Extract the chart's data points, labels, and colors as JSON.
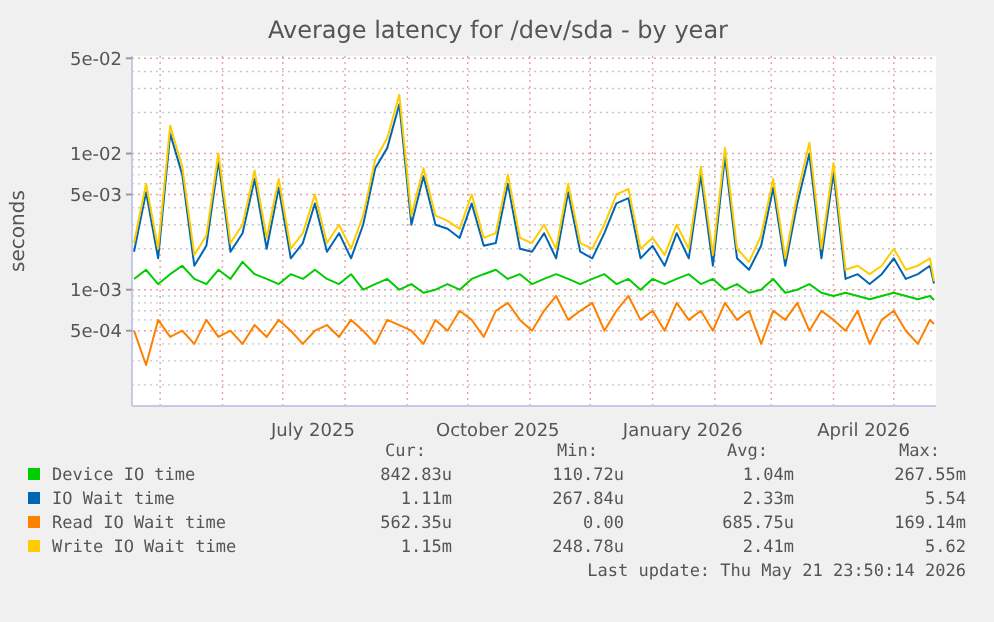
{
  "chart_data": {
    "type": "line",
    "title": "Average latency for /dev/sda - by year",
    "ylabel": "seconds",
    "log": "y",
    "grid": true,
    "legend": "bottom",
    "marker": "none",
    "line_style": "solid",
    "x": [
      "2025-04-18",
      "2025-04-24",
      "2025-04-30",
      "2025-05-06",
      "2025-05-12",
      "2025-05-18",
      "2025-05-24",
      "2025-05-30",
      "2025-06-05",
      "2025-06-11",
      "2025-06-17",
      "2025-06-23",
      "2025-06-29",
      "2025-07-05",
      "2025-07-11",
      "2025-07-17",
      "2025-07-23",
      "2025-07-29",
      "2025-08-04",
      "2025-08-10",
      "2025-08-16",
      "2025-08-22",
      "2025-08-28",
      "2025-09-03",
      "2025-09-09",
      "2025-09-15",
      "2025-09-21",
      "2025-09-27",
      "2025-10-03",
      "2025-10-09",
      "2025-10-15",
      "2025-10-21",
      "2025-10-27",
      "2025-11-02",
      "2025-11-08",
      "2025-11-14",
      "2025-11-20",
      "2025-11-26",
      "2025-12-02",
      "2025-12-08",
      "2025-12-14",
      "2025-12-20",
      "2025-12-26",
      "2026-01-01",
      "2026-01-07",
      "2026-01-13",
      "2026-01-19",
      "2026-01-25",
      "2026-01-31",
      "2026-02-06",
      "2026-02-12",
      "2026-02-18",
      "2026-02-24",
      "2026-03-02",
      "2026-03-08",
      "2026-03-14",
      "2026-03-20",
      "2026-03-26",
      "2026-04-01",
      "2026-04-07",
      "2026-04-13",
      "2026-04-19",
      "2026-04-25",
      "2026-05-01",
      "2026-05-07",
      "2026-05-13",
      "2026-05-19",
      "2026-05-21"
    ],
    "xlim": [
      "2025-04-17",
      "2026-05-22"
    ],
    "xticks": [
      {
        "value": "2025-05-01",
        "label": null
      },
      {
        "value": "2025-06-01",
        "label": null
      },
      {
        "value": "2025-07-01",
        "label": null
      },
      {
        "value": "2025-08-01",
        "label": null
      },
      {
        "value": "2025-09-01",
        "label": null
      },
      {
        "value": "2025-10-01",
        "label": null
      },
      {
        "value": "2025-11-01",
        "label": null
      },
      {
        "value": "2025-12-01",
        "label": null
      },
      {
        "value": "2026-01-01",
        "label": null
      },
      {
        "value": "2026-02-01",
        "label": null
      },
      {
        "value": "2026-03-01",
        "label": null
      },
      {
        "value": "2026-04-01",
        "label": null
      },
      {
        "value": "2026-05-01",
        "label": null
      },
      {
        "value": "2025-07-16",
        "label": "July 2025"
      },
      {
        "value": "2025-10-16",
        "label": "October 2025"
      },
      {
        "value": "2026-01-16",
        "label": "January 2026"
      },
      {
        "value": "2026-04-16",
        "label": "April 2026"
      }
    ],
    "ylim": [
      0.00014,
      0.052
    ],
    "yticks": [
      {
        "value": 0.0002,
        "label": null
      },
      {
        "value": 0.0003,
        "label": null
      },
      {
        "value": 0.0004,
        "label": null
      },
      {
        "value": 0.0005,
        "label": "5e-04"
      },
      {
        "value": 0.0006,
        "label": null
      },
      {
        "value": 0.0007,
        "label": null
      },
      {
        "value": 0.0008,
        "label": null
      },
      {
        "value": 0.0009,
        "label": null
      },
      {
        "value": 0.001,
        "label": "1e-03"
      },
      {
        "value": 0.002,
        "label": null
      },
      {
        "value": 0.003,
        "label": null
      },
      {
        "value": 0.004,
        "label": null
      },
      {
        "value": 0.005,
        "label": "5e-03"
      },
      {
        "value": 0.006,
        "label": null
      },
      {
        "value": 0.007,
        "label": null
      },
      {
        "value": 0.008,
        "label": null
      },
      {
        "value": 0.009,
        "label": null
      },
      {
        "value": 0.01,
        "label": "1e-02"
      },
      {
        "value": 0.02,
        "label": null
      },
      {
        "value": 0.03,
        "label": null
      },
      {
        "value": 0.04,
        "label": null
      },
      {
        "value": 0.05,
        "label": "5e-02"
      }
    ],
    "series": [
      {
        "name": "Device IO time",
        "color": "#00cc00",
        "values": [
          0.0012,
          0.0014,
          0.0011,
          0.0013,
          0.0015,
          0.0012,
          0.0011,
          0.0014,
          0.0012,
          0.0016,
          0.0013,
          0.0012,
          0.0011,
          0.0013,
          0.0012,
          0.0014,
          0.0012,
          0.0011,
          0.0013,
          0.001,
          0.0011,
          0.0012,
          0.001,
          0.0011,
          0.00095,
          0.001,
          0.0011,
          0.001,
          0.0012,
          0.0013,
          0.0014,
          0.0012,
          0.0013,
          0.0011,
          0.0012,
          0.0013,
          0.0012,
          0.0011,
          0.0012,
          0.0013,
          0.0011,
          0.0012,
          0.001,
          0.0012,
          0.0011,
          0.0012,
          0.0013,
          0.0011,
          0.0012,
          0.001,
          0.0011,
          0.00095,
          0.001,
          0.0012,
          0.00095,
          0.001,
          0.0011,
          0.00095,
          0.0009,
          0.00095,
          0.0009,
          0.00085,
          0.0009,
          0.00095,
          0.0009,
          0.00085,
          0.0009,
          0.00084
        ]
      },
      {
        "name": "IO Wait time",
        "color": "#0066b3",
        "values": [
          0.0019,
          0.0052,
          0.0017,
          0.014,
          0.007,
          0.0015,
          0.0021,
          0.0088,
          0.0019,
          0.0026,
          0.0065,
          0.002,
          0.0056,
          0.0017,
          0.0022,
          0.0043,
          0.0019,
          0.0026,
          0.0017,
          0.003,
          0.0078,
          0.011,
          0.023,
          0.003,
          0.0068,
          0.003,
          0.0028,
          0.0024,
          0.0043,
          0.0021,
          0.0022,
          0.006,
          0.002,
          0.0019,
          0.0026,
          0.0017,
          0.0052,
          0.0019,
          0.0017,
          0.0026,
          0.0043,
          0.0047,
          0.0017,
          0.0021,
          0.0015,
          0.0026,
          0.0017,
          0.0069,
          0.0015,
          0.0095,
          0.0017,
          0.0014,
          0.0021,
          0.0056,
          0.0015,
          0.0043,
          0.01,
          0.0017,
          0.0073,
          0.0012,
          0.0013,
          0.0011,
          0.0013,
          0.0017,
          0.0012,
          0.0013,
          0.0015,
          0.00111
        ]
      },
      {
        "name": "Read IO Wait time",
        "color": "#ff8000",
        "values": [
          0.0005,
          0.00028,
          0.0006,
          0.00045,
          0.0005,
          0.0004,
          0.0006,
          0.00045,
          0.0005,
          0.0004,
          0.00055,
          0.00045,
          0.0006,
          0.0005,
          0.0004,
          0.0005,
          0.00055,
          0.00045,
          0.0006,
          0.0005,
          0.0004,
          0.0006,
          0.00055,
          0.0005,
          0.0004,
          0.0006,
          0.0005,
          0.0007,
          0.0006,
          0.00045,
          0.0007,
          0.0008,
          0.0006,
          0.0005,
          0.0007,
          0.0009,
          0.0006,
          0.0007,
          0.0008,
          0.0005,
          0.0007,
          0.0009,
          0.0006,
          0.0007,
          0.0005,
          0.0008,
          0.0006,
          0.0007,
          0.0005,
          0.0008,
          0.0006,
          0.0007,
          0.0004,
          0.0007,
          0.0006,
          0.0008,
          0.0005,
          0.0007,
          0.0006,
          0.0005,
          0.0007,
          0.0004,
          0.0006,
          0.0007,
          0.0005,
          0.0004,
          0.0006,
          0.00056
        ]
      },
      {
        "name": "Write IO Wait time",
        "color": "#ffcc00",
        "values": [
          0.0022,
          0.006,
          0.002,
          0.016,
          0.008,
          0.0018,
          0.0025,
          0.01,
          0.0022,
          0.003,
          0.0075,
          0.0024,
          0.0065,
          0.002,
          0.0026,
          0.005,
          0.0022,
          0.003,
          0.002,
          0.0035,
          0.009,
          0.013,
          0.027,
          0.0035,
          0.0078,
          0.0035,
          0.0032,
          0.0028,
          0.005,
          0.0024,
          0.0026,
          0.007,
          0.0024,
          0.0022,
          0.003,
          0.002,
          0.006,
          0.0022,
          0.002,
          0.003,
          0.005,
          0.0055,
          0.002,
          0.0024,
          0.0018,
          0.003,
          0.002,
          0.008,
          0.0018,
          0.011,
          0.002,
          0.0016,
          0.0025,
          0.0065,
          0.0017,
          0.005,
          0.012,
          0.002,
          0.0085,
          0.0014,
          0.0015,
          0.0013,
          0.0015,
          0.002,
          0.0014,
          0.0015,
          0.0017,
          0.00115
        ]
      }
    ],
    "annotations": [
      "Cur:",
      "Min:",
      "Avg:",
      "Max:",
      "842.83u",
      "110.72u",
      "1.04m",
      "267.55m",
      "1.11m",
      "267.84u",
      "2.33m",
      "5.54",
      "562.35u",
      "0.00",
      "685.75u",
      "169.14m",
      "1.15m",
      "248.78u",
      "2.41m",
      "5.62",
      "Last update: Thu May 21 23:50:14 2026"
    ]
  }
}
